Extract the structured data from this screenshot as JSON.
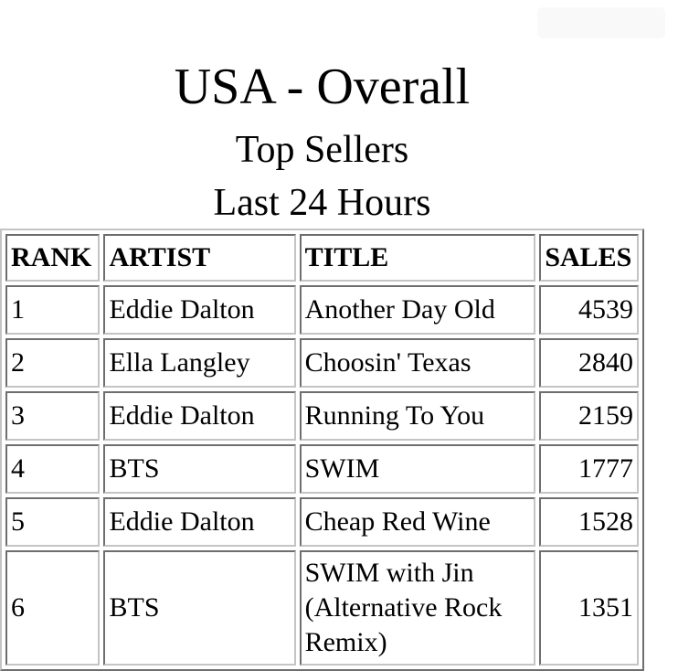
{
  "header": {
    "title": "USA - Overall",
    "subtitle": "Top Sellers",
    "period": "Last 24 Hours"
  },
  "table": {
    "columns": [
      "RANK",
      "ARTIST",
      "TITLE",
      "SALES"
    ],
    "rows": [
      {
        "rank": "1",
        "artist": "Eddie Dalton",
        "title": "Another Day Old",
        "sales": "4539"
      },
      {
        "rank": "2",
        "artist": "Ella Langley",
        "title": "Choosin' Texas",
        "sales": "2840"
      },
      {
        "rank": "3",
        "artist": "Eddie Dalton",
        "title": "Running To You",
        "sales": "2159"
      },
      {
        "rank": "4",
        "artist": "BTS",
        "title": "SWIM",
        "sales": "1777"
      },
      {
        "rank": "5",
        "artist": "Eddie Dalton",
        "title": "Cheap Red Wine",
        "sales": "1528"
      },
      {
        "rank": "6",
        "artist": "BTS",
        "title": "SWIM with Jin (Alternative Rock Remix)",
        "sales": "1351"
      }
    ]
  }
}
